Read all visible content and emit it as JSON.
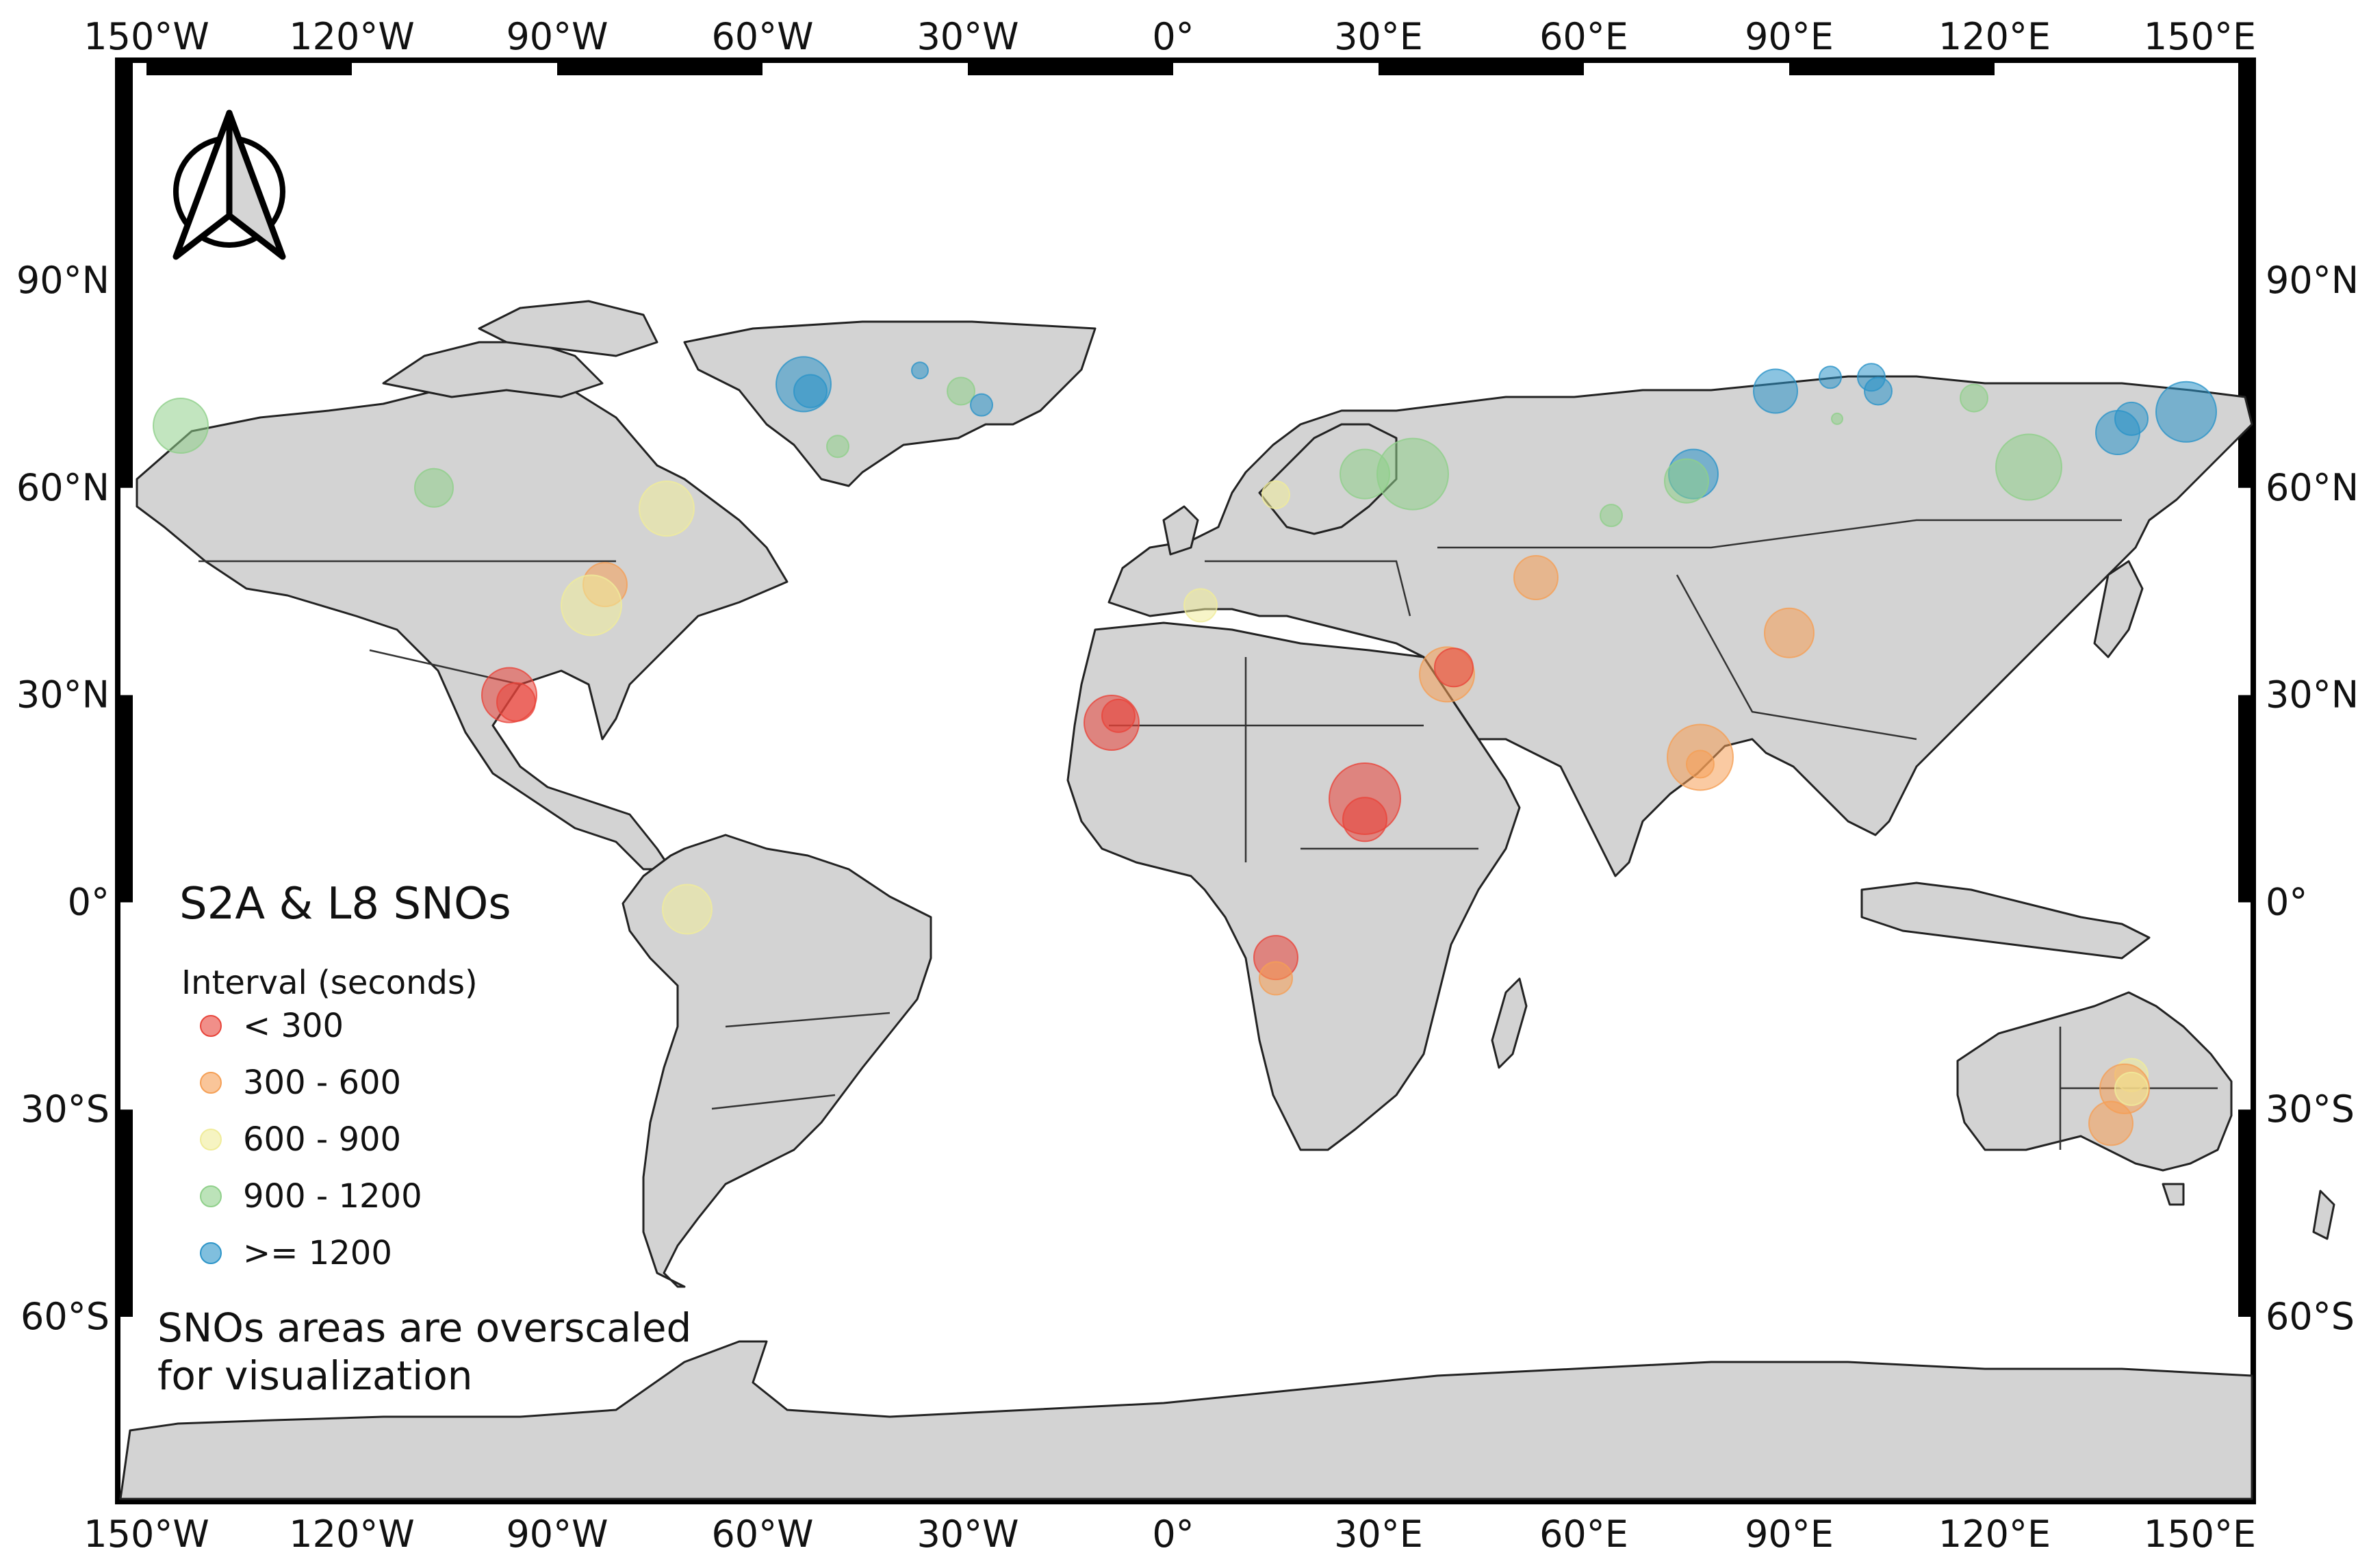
{
  "map": {
    "title": "S2A & L8 SNOs",
    "legend_title": "Interval (seconds)",
    "note_lines": [
      "SNOs areas are overscaled",
      "for visualization"
    ],
    "lon_labels": [
      "150°W",
      "120°W",
      "90°W",
      "60°W",
      "30°W",
      "0°",
      "30°E",
      "60°E",
      "90°E",
      "120°E",
      "150°E"
    ],
    "lat_labels": [
      "90°N",
      "60°N",
      "30°N",
      "0°",
      "30°S",
      "60°S"
    ],
    "colors": {
      "ocean": "#ffffff",
      "land": "#d3d3d3",
      "border": "#222222",
      "frame": "#000000"
    },
    "legend_items": [
      {
        "label": "< 300",
        "color": "#e8443a"
      },
      {
        "label": "300 - 600",
        "color": "#f59f55"
      },
      {
        "label": "600 - 900",
        "color": "#f0ec9a"
      },
      {
        "label": "900 - 1200",
        "color": "#8fd08a"
      },
      {
        "label": ">= 1200",
        "color": "#2b94c8"
      }
    ],
    "north_arrow_icon": "north-arrow-icon",
    "sno_points": [
      {
        "lon": -145,
        "lat": 69,
        "r": 1,
        "c": 3
      },
      {
        "lon": -108,
        "lat": 60,
        "r": 0.7,
        "c": 3
      },
      {
        "lon": -74,
        "lat": 57,
        "r": 1,
        "c": 2
      },
      {
        "lon": -83,
        "lat": 46,
        "r": 0.8,
        "c": 1
      },
      {
        "lon": -85,
        "lat": 43,
        "r": 1.1,
        "c": 2
      },
      {
        "lon": -97,
        "lat": 30,
        "r": 1,
        "c": 0
      },
      {
        "lon": -96,
        "lat": 29,
        "r": 0.7,
        "c": 0
      },
      {
        "lon": -71,
        "lat": -1,
        "r": 0.9,
        "c": 2
      },
      {
        "lon": -54,
        "lat": 75,
        "r": 1,
        "c": 4
      },
      {
        "lon": -53,
        "lat": 74,
        "r": 0.6,
        "c": 4
      },
      {
        "lon": -49,
        "lat": 66,
        "r": 0.4,
        "c": 3
      },
      {
        "lon": -37,
        "lat": 77,
        "r": 0.3,
        "c": 4
      },
      {
        "lon": -31,
        "lat": 74,
        "r": 0.5,
        "c": 3
      },
      {
        "lon": -28,
        "lat": 72,
        "r": 0.4,
        "c": 4
      },
      {
        "lon": -9,
        "lat": 26,
        "r": 1,
        "c": 0
      },
      {
        "lon": -8,
        "lat": 27,
        "r": 0.6,
        "c": 0
      },
      {
        "lon": 4,
        "lat": 43,
        "r": 0.6,
        "c": 2
      },
      {
        "lon": 15,
        "lat": 59,
        "r": 0.5,
        "c": 2
      },
      {
        "lon": 28,
        "lat": 15,
        "r": 1.3,
        "c": 0
      },
      {
        "lon": 28,
        "lat": 12,
        "r": 0.8,
        "c": 0
      },
      {
        "lon": 15,
        "lat": -8,
        "r": 0.8,
        "c": 0
      },
      {
        "lon": 15,
        "lat": -11,
        "r": 0.6,
        "c": 1
      },
      {
        "lon": 40,
        "lat": 33,
        "r": 1,
        "c": 1
      },
      {
        "lon": 41,
        "lat": 34,
        "r": 0.7,
        "c": 0
      },
      {
        "lon": 35,
        "lat": 62,
        "r": 1.3,
        "c": 3
      },
      {
        "lon": 28,
        "lat": 62,
        "r": 0.9,
        "c": 3
      },
      {
        "lon": 53,
        "lat": 47,
        "r": 0.8,
        "c": 1
      },
      {
        "lon": 64,
        "lat": 56,
        "r": 0.4,
        "c": 3
      },
      {
        "lon": 76,
        "lat": 62,
        "r": 0.9,
        "c": 4
      },
      {
        "lon": 75,
        "lat": 61,
        "r": 0.8,
        "c": 3
      },
      {
        "lon": 90,
        "lat": 39,
        "r": 0.9,
        "c": 1
      },
      {
        "lon": 77,
        "lat": 21,
        "r": 1.2,
        "c": 1
      },
      {
        "lon": 77,
        "lat": 20,
        "r": 0.5,
        "c": 1
      },
      {
        "lon": 88,
        "lat": 74,
        "r": 0.8,
        "c": 4
      },
      {
        "lon": 96,
        "lat": 76,
        "r": 0.4,
        "c": 4
      },
      {
        "lon": 102,
        "lat": 76,
        "r": 0.5,
        "c": 4
      },
      {
        "lon": 103,
        "lat": 74,
        "r": 0.5,
        "c": 4
      },
      {
        "lon": 97,
        "lat": 70,
        "r": 0.2,
        "c": 3
      },
      {
        "lon": 117,
        "lat": 73,
        "r": 0.5,
        "c": 3
      },
      {
        "lon": 125,
        "lat": 63,
        "r": 1.2,
        "c": 3
      },
      {
        "lon": 138,
        "lat": 68,
        "r": 0.8,
        "c": 4
      },
      {
        "lon": 140,
        "lat": 70,
        "r": 0.6,
        "c": 4
      },
      {
        "lon": 148,
        "lat": 71,
        "r": 1.1,
        "c": 4
      },
      {
        "lon": 140,
        "lat": -25,
        "r": 0.6,
        "c": 2
      },
      {
        "lon": 139,
        "lat": -27,
        "r": 0.9,
        "c": 1
      },
      {
        "lon": 140,
        "lat": -27,
        "r": 0.6,
        "c": 2
      },
      {
        "lon": 137,
        "lat": -32,
        "r": 0.8,
        "c": 1
      }
    ]
  }
}
